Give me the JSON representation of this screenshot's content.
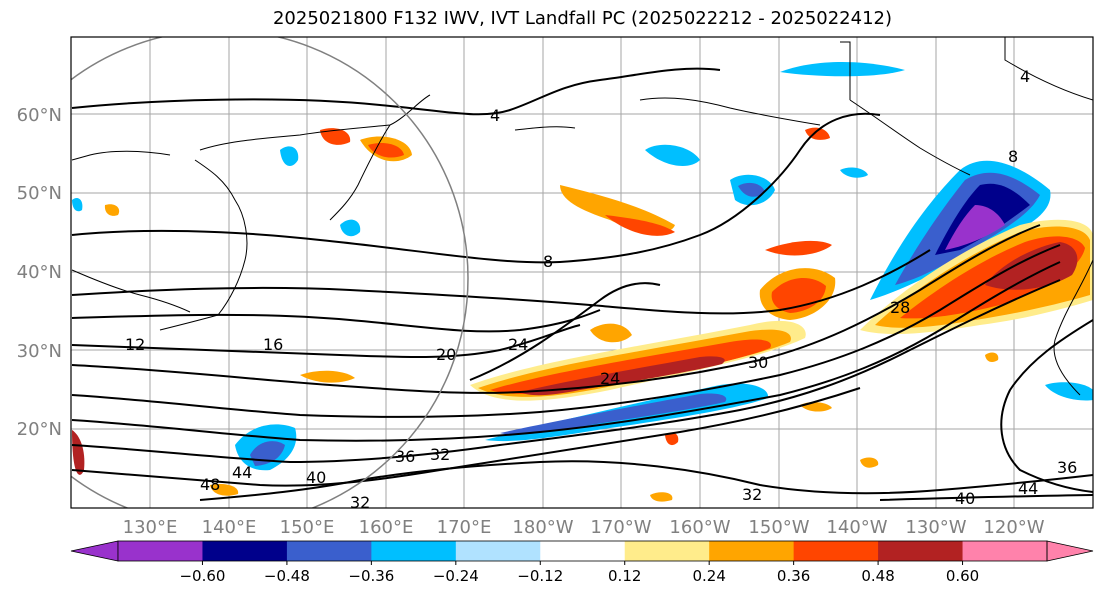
{
  "title": "2025021800 F132 IWV, IVT Landfall PC (2025022212 - 2025022412)",
  "map": {
    "lon_labels": [
      "130°E",
      "140°E",
      "150°E",
      "160°E",
      "170°E",
      "180°W",
      "170°W",
      "160°W",
      "150°W",
      "140°W",
      "130°W",
      "120°W"
    ],
    "lat_labels": [
      "60°N",
      "50°N",
      "40°N",
      "30°N",
      "20°N"
    ],
    "contour_labels": [
      "4",
      "8",
      "12",
      "16",
      "20",
      "24",
      "24",
      "28",
      "30",
      "32",
      "36",
      "40",
      "44",
      "48",
      "32",
      "40",
      "44",
      "32",
      "36",
      "4",
      "8"
    ]
  },
  "colorbar": {
    "ticks": [
      "−0.60",
      "−0.48",
      "−0.36",
      "−0.24",
      "−0.12",
      "0.12",
      "0.24",
      "0.36",
      "0.48",
      "0.60"
    ],
    "colors": [
      "#9932cc",
      "#00008b",
      "#3a5fcd",
      "#00bfff",
      "#b0e2ff",
      "#ffffff",
      "#ffec8b",
      "#ffa500",
      "#ff4500",
      "#b22222",
      "#ff82ab"
    ]
  }
}
